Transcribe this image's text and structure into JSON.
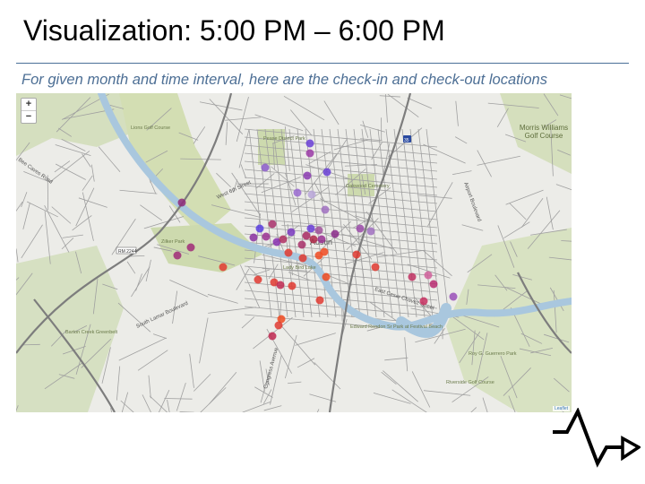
{
  "slide": {
    "title": "Visualization: 5:00 PM – 6:00 PM",
    "subtitle": "For given month and time interval, here are the check-in and check-out locations"
  },
  "map": {
    "zoom_in_label": "+",
    "zoom_out_label": "−",
    "attribution": "Leaflet",
    "labels": {
      "golf": "Lions Golf Course",
      "pease": "Pease District Park",
      "zilker": "Zilker Park",
      "ladybird": "Lady Bird Lake",
      "oakwood": "Oakwood Cemetery",
      "morris": "Morris Williams Golf Course",
      "barton": "Barton Creek Greenbelt",
      "festival": "Edward Rendon Sr Park at Festival Beach",
      "guerrero": "Roy G. Guerrero Park",
      "riverside": "Riverside Golf Course",
      "austin": "Austin",
      "west6": "West 6th Street",
      "cesar": "East Cesar Chavez Street",
      "lamar": "South Lamar Boulevard",
      "congress": "Congress Avenue",
      "airport": "Airport Boulevard",
      "beecaves": "Bee Caves Road",
      "i35": "35",
      "loop1": "RM 2244"
    },
    "colors": {
      "water": "#a9c7de",
      "park": "#cfdcb0",
      "road": "#9a9a9a",
      "highway": "#7d7d7d"
    }
  }
}
